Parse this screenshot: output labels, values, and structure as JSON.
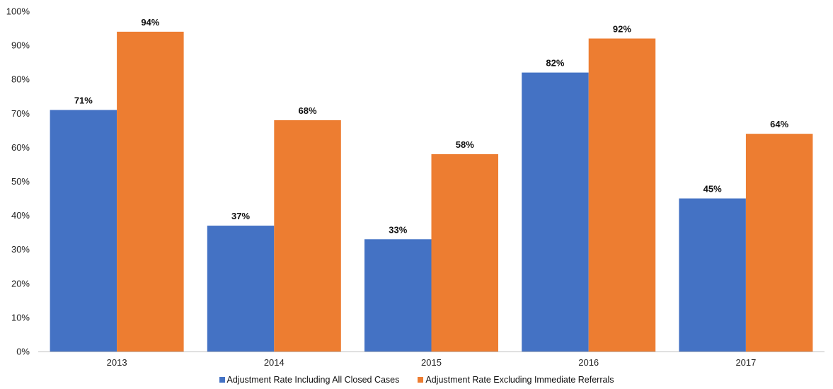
{
  "chart_data": {
    "type": "bar",
    "categories": [
      "2013",
      "2014",
      "2015",
      "2016",
      "2017"
    ],
    "series": [
      {
        "name": "Adjustment Rate Including All Closed Cases",
        "values": [
          71,
          37,
          33,
          82,
          45
        ],
        "labels": [
          "71%",
          "37%",
          "33%",
          "82%",
          "45%"
        ],
        "color": "#4472C4"
      },
      {
        "name": "Adjustment Rate Excluding Immediate Referrals",
        "values": [
          94,
          68,
          58,
          92,
          64
        ],
        "labels": [
          "94%",
          "68%",
          "58%",
          "92%",
          "64%"
        ],
        "color": "#ED7D31"
      }
    ],
    "y_ticks": [
      "0%",
      "10%",
      "20%",
      "30%",
      "40%",
      "50%",
      "60%",
      "70%",
      "80%",
      "90%",
      "100%"
    ],
    "ylim": [
      0,
      100
    ],
    "grid": false,
    "legend_position": "bottom"
  }
}
